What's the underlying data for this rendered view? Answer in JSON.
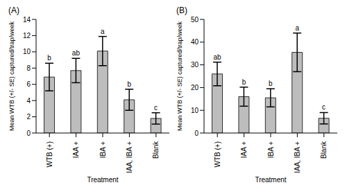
{
  "chart_data": [
    {
      "type": "bar",
      "title": "(A)",
      "x_label": "Treatment",
      "y_label": "Mean WTB (+/- SE) captured/trap/week",
      "categories": [
        "WTB (+)",
        "IAA +",
        "IBA +",
        "IAA, IBA +",
        "Blank"
      ],
      "values": [
        6.9,
        7.7,
        10.1,
        4.1,
        1.8
      ],
      "errors": [
        1.7,
        1.5,
        1.8,
        1.3,
        0.7
      ],
      "letters": [
        "b",
        "ab",
        "a",
        "b",
        "c"
      ],
      "color": "#bdbdbd",
      "ylim": [
        0,
        14
      ],
      "yticks": [
        0,
        2,
        4,
        6,
        8,
        10,
        12,
        14
      ],
      "grid": false
    },
    {
      "type": "bar",
      "title": "(B)",
      "x_label": "Treatment",
      "y_label": "Mean WTB (+/- SE) captured/trap/week",
      "categories": [
        "WTB (+)",
        "IAA +",
        "IBA +",
        "IAA, IBA +",
        "Blank"
      ],
      "values": [
        26,
        16,
        15.5,
        35.5,
        6.5
      ],
      "errors": [
        5.2,
        4.2,
        4.0,
        8.5,
        2.5
      ],
      "letters": [
        "ab",
        "b",
        "b",
        "a",
        "c"
      ],
      "color": "#bdbdbd",
      "ylim": [
        0,
        50
      ],
      "yticks": [
        0,
        10,
        20,
        30,
        40,
        50
      ],
      "grid": false
    }
  ]
}
